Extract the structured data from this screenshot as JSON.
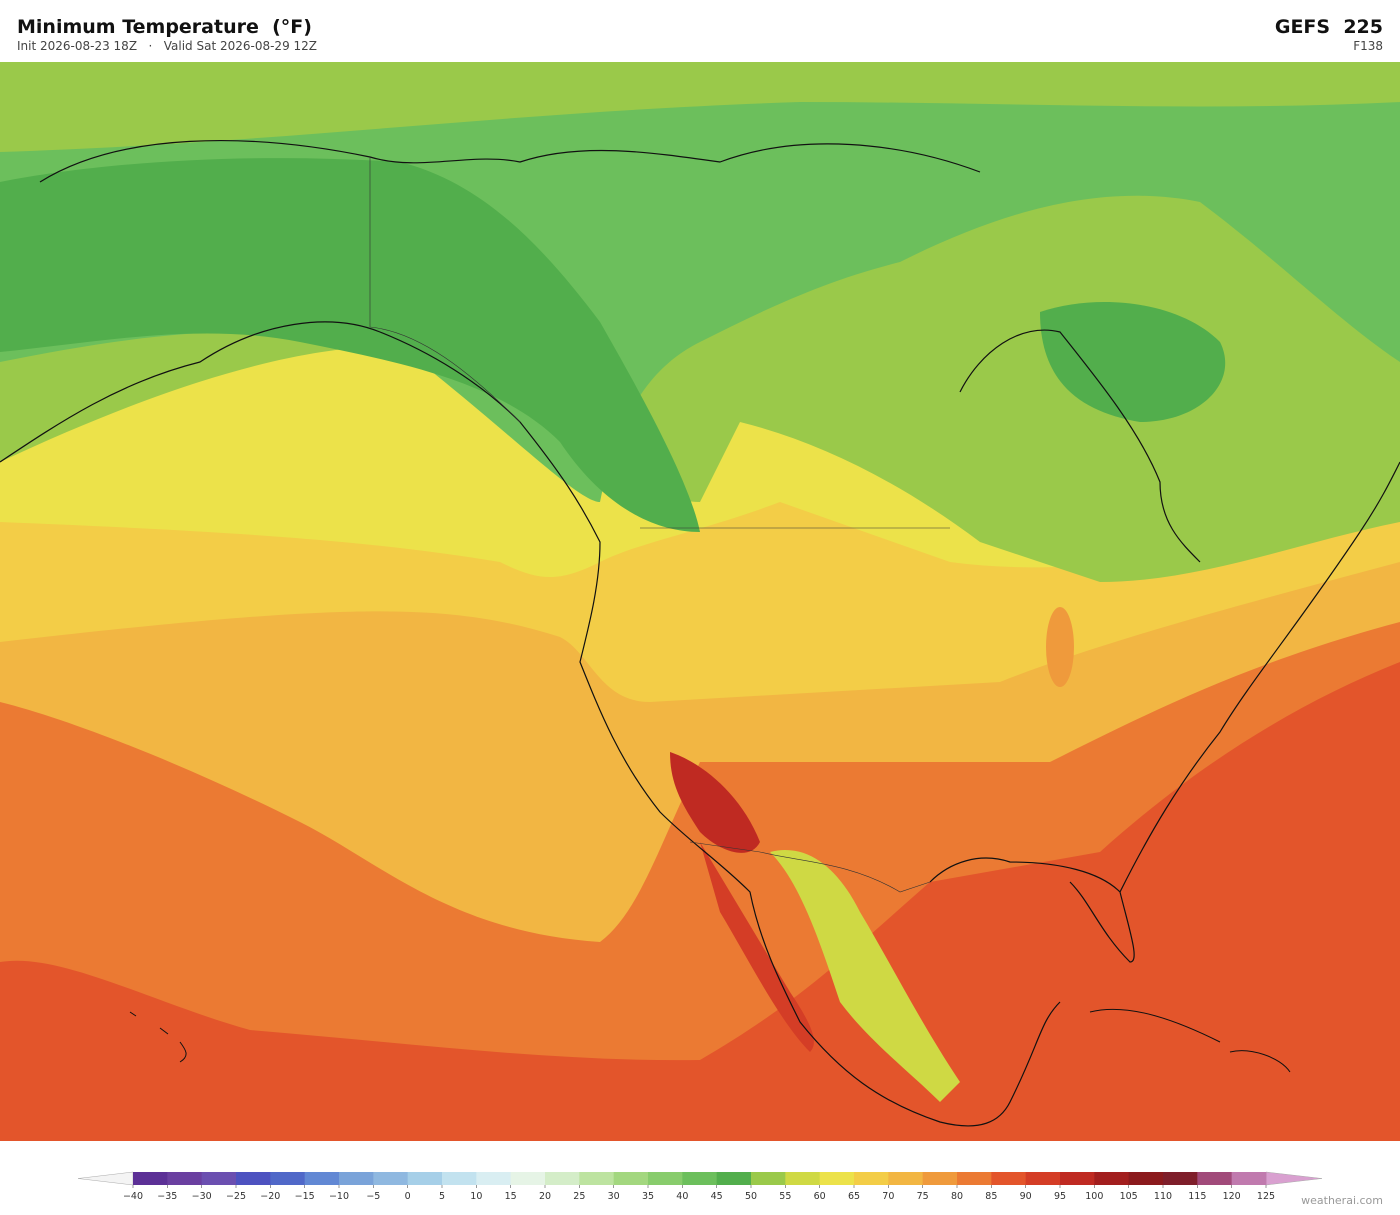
{
  "header": {
    "title": "Minimum Temperature  (°F)",
    "subtitle": "Init 2026-08-23 18Z   ·   Valid Sat 2026-08-29 12Z",
    "model": "GEFS  225",
    "forecast_hour": "F138"
  },
  "colorbar": {
    "ticks": [
      {
        "value": -40,
        "label": "−40"
      },
      {
        "value": -35,
        "label": "−35"
      },
      {
        "value": -30,
        "label": "−30"
      },
      {
        "value": -25,
        "label": "−25"
      },
      {
        "value": -20,
        "label": "−20"
      },
      {
        "value": -15,
        "label": "−15"
      },
      {
        "value": -10,
        "label": "−10"
      },
      {
        "value": -5,
        "label": "−5"
      },
      0,
      5,
      10,
      15,
      20,
      25,
      30,
      35,
      40,
      45,
      50,
      55,
      60,
      65,
      70,
      75,
      80,
      85,
      90,
      95,
      100,
      105,
      110,
      115,
      120,
      125
    ],
    "colors": [
      "#5c3096",
      "#6a3fa0",
      "#6b4fb0",
      "#4d52c0",
      "#5068c8",
      "#6288d4",
      "#7aa3d9",
      "#8fb8e0",
      "#a6cfe8",
      "#c2e2ef",
      "#d9eef2",
      "#e6f4e6",
      "#d4edc8",
      "#bde3a0",
      "#a3d77f",
      "#88cc6c",
      "#6cbf5c",
      "#52ae4c",
      "#9ac94a",
      "#cfd944",
      "#ece24a",
      "#f3cd47",
      "#f2b643",
      "#ef9a3c",
      "#eb7a33",
      "#e3552b",
      "#d43d26",
      "#bf2a22",
      "#a21e1e",
      "#8b1a1d",
      "#7e1e2a",
      "#a14a7a",
      "#c07aae"
    ],
    "under_color": "#f4f4f4",
    "over_color": "#d9a0d0"
  },
  "credit": "weatherai.com"
}
